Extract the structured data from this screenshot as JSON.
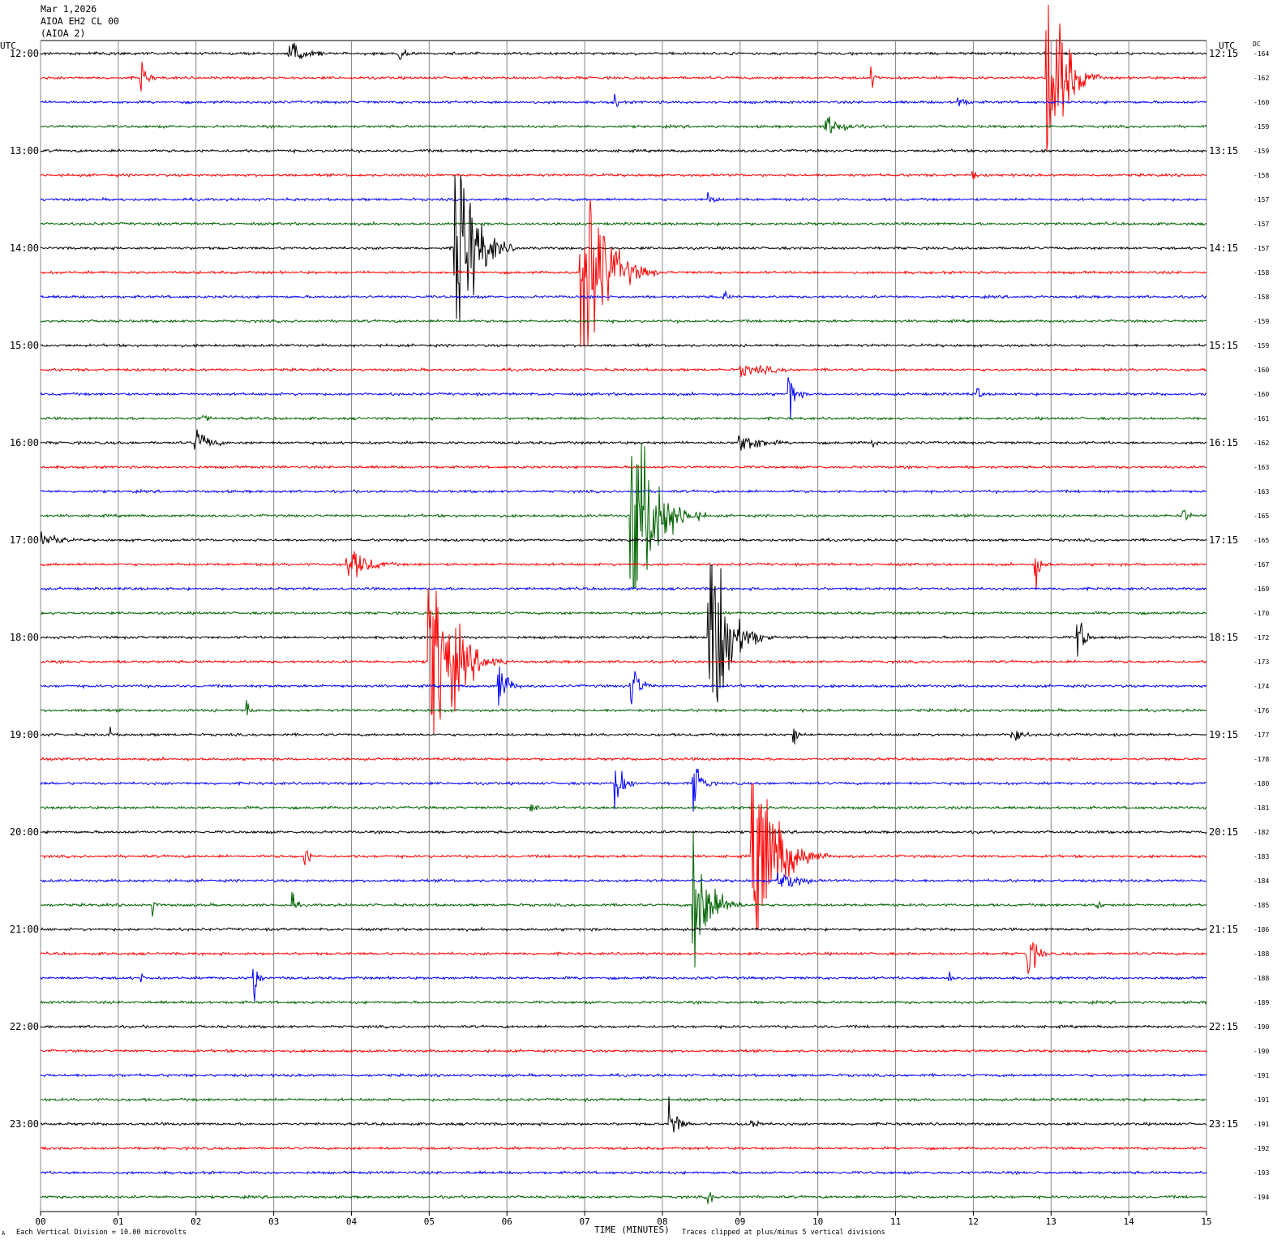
{
  "header": {
    "date": "Mar 1,2026",
    "station": "AIOA EH2 CL 00",
    "station_alias": "(AIOA 2)"
  },
  "labels": {
    "left_utc": "UTC",
    "right_utc": "UTC",
    "dc": "DC"
  },
  "footer": {
    "scale_note": "Each Vertical Division =   10.00 microvolts",
    "xlabel": "TIME (MINUTES)",
    "clip_note": "Traces clipped at plus/minus 5 vertical divisions",
    "corner_mark": "A"
  },
  "colors": {
    "trace_cycle": [
      "#000000",
      "#ff0000",
      "#0000ff",
      "#006400"
    ],
    "grid": "#888888"
  },
  "chart_data": {
    "type": "line",
    "subtype": "helicorder (seismogram drum plot)",
    "xlim": [
      0,
      15
    ],
    "x_ticks": [
      "00",
      "01",
      "02",
      "03",
      "04",
      "05",
      "06",
      "07",
      "08",
      "09",
      "10",
      "11",
      "12",
      "13",
      "14",
      "15"
    ],
    "rows_per_hour": 4,
    "row_minutes": 15,
    "left_hour_labels": [
      "12:00",
      "13:00",
      "14:00",
      "15:00",
      "16:00",
      "17:00",
      "18:00",
      "19:00",
      "20:00",
      "21:00",
      "22:00",
      "23:00"
    ],
    "right_hour_labels": [
      "12:15",
      "13:15",
      "14:15",
      "15:15",
      "16:15",
      "17:15",
      "18:15",
      "19:15",
      "20:15",
      "21:15",
      "22:15",
      "23:15"
    ],
    "dc_offsets": [
      -164,
      -162,
      -160,
      -159,
      -159,
      -158,
      -157,
      -157,
      -157,
      -158,
      -158,
      -159,
      -159,
      -160,
      -160,
      -161,
      -162,
      -163,
      -163,
      -165,
      -165,
      -167,
      -169,
      -170,
      -172,
      -173,
      -174,
      -176,
      -177,
      -178,
      -180,
      -181,
      -182,
      -183,
      -184,
      -185,
      -186,
      -188,
      -188,
      -189,
      -190,
      -190,
      -191,
      -191,
      -191,
      -192,
      -193,
      -194
    ],
    "events": [
      {
        "row": 0,
        "minute": 3.2,
        "amp": 0.4,
        "dur": 0.9
      },
      {
        "row": 0,
        "minute": 4.6,
        "amp": 0.25,
        "dur": 0.5
      },
      {
        "row": 1,
        "minute": 1.3,
        "amp": 0.6,
        "dur": 0.3
      },
      {
        "row": 1,
        "minute": 10.7,
        "amp": 0.3,
        "dur": 0.3
      },
      {
        "row": 1,
        "minute": 12.95,
        "amp": 5,
        "dur": 0.7
      },
      {
        "row": 2,
        "minute": 7.4,
        "amp": 0.3,
        "dur": 0.2
      },
      {
        "row": 2,
        "minute": 11.8,
        "amp": 0.3,
        "dur": 0.4
      },
      {
        "row": 3,
        "minute": 10.1,
        "amp": 0.4,
        "dur": 1.0
      },
      {
        "row": 5,
        "minute": 12.0,
        "amp": 0.2,
        "dur": 0.2
      },
      {
        "row": 6,
        "minute": 8.6,
        "amp": 0.2,
        "dur": 0.5
      },
      {
        "row": 8,
        "minute": 5.33,
        "amp": 5,
        "dur": 0.8
      },
      {
        "row": 9,
        "minute": 6.95,
        "amp": 5,
        "dur": 1.0
      },
      {
        "row": 10,
        "minute": 8.8,
        "amp": 0.2,
        "dur": 0.3
      },
      {
        "row": 13,
        "minute": 9.0,
        "amp": 0.25,
        "dur": 1.8
      },
      {
        "row": 14,
        "minute": 9.63,
        "amp": 1,
        "dur": 0.3
      },
      {
        "row": 14,
        "minute": 12.05,
        "amp": 0.3,
        "dur": 0.2
      },
      {
        "row": 15,
        "minute": 2.1,
        "amp": 0.3,
        "dur": 0.2
      },
      {
        "row": 16,
        "minute": 2.0,
        "amp": 0.5,
        "dur": 0.7
      },
      {
        "row": 16,
        "minute": 9.0,
        "amp": 0.5,
        "dur": 1.0
      },
      {
        "row": 16,
        "minute": 10.7,
        "amp": 0.2,
        "dur": 0.4
      },
      {
        "row": 19,
        "minute": 7.6,
        "amp": 5,
        "dur": 1.0
      },
      {
        "row": 19,
        "minute": 14.7,
        "amp": 0.3,
        "dur": 0.3
      },
      {
        "row": 20,
        "minute": 0.0,
        "amp": 0.45,
        "dur": 0.8
      },
      {
        "row": 21,
        "minute": 3.95,
        "amp": 0.7,
        "dur": 1.0
      },
      {
        "row": 21,
        "minute": 12.8,
        "amp": 0.8,
        "dur": 0.3
      },
      {
        "row": 24,
        "minute": 8.6,
        "amp": 5,
        "dur": 0.8
      },
      {
        "row": 24,
        "minute": 13.35,
        "amp": 1,
        "dur": 0.3
      },
      {
        "row": 25,
        "minute": 5.0,
        "amp": 5,
        "dur": 1.0
      },
      {
        "row": 26,
        "minute": 5.9,
        "amp": 1,
        "dur": 0.4
      },
      {
        "row": 26,
        "minute": 7.6,
        "amp": 1,
        "dur": 0.4
      },
      {
        "row": 27,
        "minute": 2.65,
        "amp": 0.4,
        "dur": 0.2
      },
      {
        "row": 28,
        "minute": 0.9,
        "amp": 0.3,
        "dur": 0.1
      },
      {
        "row": 28,
        "minute": 9.7,
        "amp": 0.4,
        "dur": 0.2
      },
      {
        "row": 28,
        "minute": 12.5,
        "amp": 0.5,
        "dur": 0.4
      },
      {
        "row": 30,
        "minute": 7.4,
        "amp": 1,
        "dur": 0.4
      },
      {
        "row": 30,
        "minute": 8.4,
        "amp": 1,
        "dur": 0.4
      },
      {
        "row": 31,
        "minute": 6.3,
        "amp": 0.25,
        "dur": 0.4
      },
      {
        "row": 33,
        "minute": 3.4,
        "amp": 0.6,
        "dur": 0.2
      },
      {
        "row": 33,
        "minute": 9.15,
        "amp": 5,
        "dur": 1.0
      },
      {
        "row": 34,
        "minute": 9.5,
        "amp": 0.5,
        "dur": 0.9
      },
      {
        "row": 35,
        "minute": 1.45,
        "amp": 0.4,
        "dur": 0.2
      },
      {
        "row": 35,
        "minute": 3.25,
        "amp": 0.4,
        "dur": 0.2
      },
      {
        "row": 35,
        "minute": 8.4,
        "amp": 3,
        "dur": 0.7
      },
      {
        "row": 35,
        "minute": 13.6,
        "amp": 0.3,
        "dur": 0.2
      },
      {
        "row": 37,
        "minute": 12.7,
        "amp": 1,
        "dur": 0.4
      },
      {
        "row": 38,
        "minute": 1.3,
        "amp": 0.3,
        "dur": 0.1
      },
      {
        "row": 38,
        "minute": 2.75,
        "amp": 1,
        "dur": 0.2
      },
      {
        "row": 38,
        "minute": 11.7,
        "amp": 0.3,
        "dur": 0.3
      },
      {
        "row": 44,
        "minute": 8.1,
        "amp": 0.8,
        "dur": 0.4
      },
      {
        "row": 44,
        "minute": 9.1,
        "amp": 0.3,
        "dur": 0.5
      },
      {
        "row": 47,
        "minute": 8.6,
        "amp": 0.4,
        "dur": 0.2
      }
    ]
  }
}
